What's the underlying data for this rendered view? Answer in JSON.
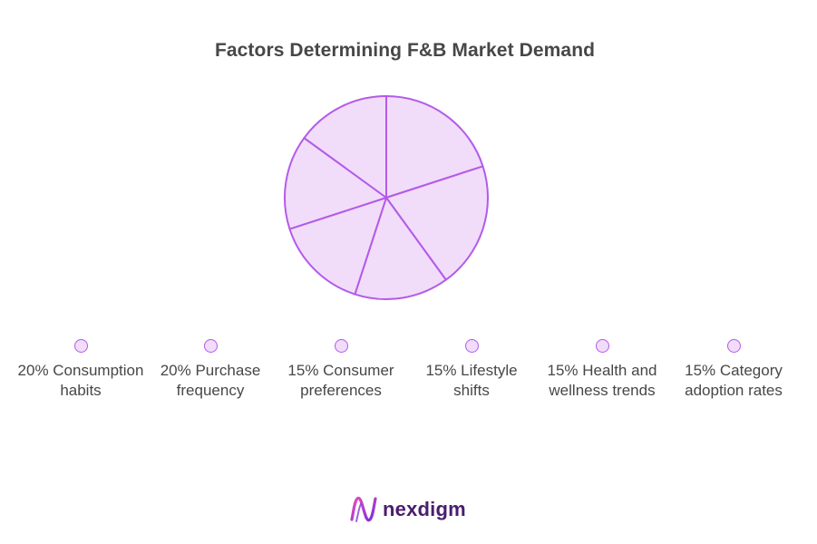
{
  "chart_data": {
    "type": "pie",
    "title": "Factors Determining F&B Market Demand",
    "categories": [
      "Consumption habits",
      "Purchase frequency",
      "Consumer preferences",
      "Lifestyle shifts",
      "Health and wellness trends",
      "Category adoption rates"
    ],
    "values": [
      20,
      20,
      15,
      15,
      15,
      15
    ],
    "legend_labels": [
      "20% Consumption habits",
      "20% Purchase frequency",
      "15% Consumer preferences",
      "15% Lifestyle shifts",
      "15% Health and wellness trends",
      "15% Category adoption rates"
    ],
    "legend_position": "bottom"
  },
  "colors": {
    "slice_fill": "#f1dcfa",
    "slice_stroke": "#b35be8",
    "title": "#474747",
    "label": "#474747",
    "logo_text": "#4a1d6e",
    "logo_mark_start": "#e94cbb",
    "logo_mark_end": "#7b2fd6"
  },
  "logo": {
    "text": "nexdigm",
    "icon": "nexdigm-logo-icon"
  }
}
